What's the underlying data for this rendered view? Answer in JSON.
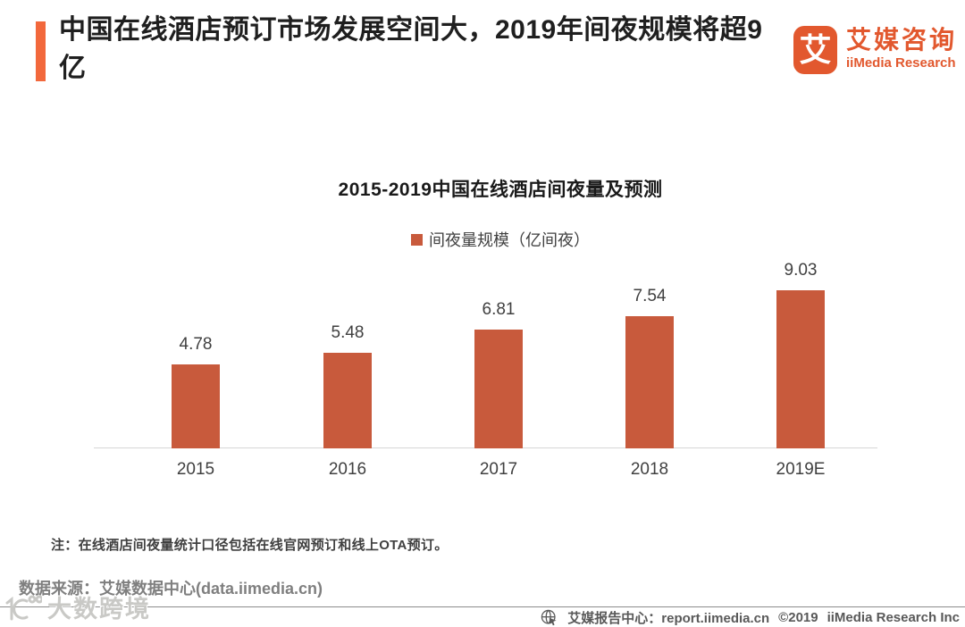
{
  "header": {
    "title": "中国在线酒店预订市场发展空间大，2019年间夜规模将超9亿",
    "logo": {
      "mark_glyph": "艾",
      "name_cn": "艾媒咨询",
      "name_en": "iiMedia Research"
    }
  },
  "chart_data": {
    "type": "bar",
    "title": "2015-2019中国在线酒店间夜量及预测",
    "categories": [
      "2015",
      "2016",
      "2017",
      "2018",
      "2019E"
    ],
    "values": [
      4.78,
      5.48,
      6.81,
      7.54,
      9.03
    ],
    "series_name": "间夜量规模（亿间夜）",
    "bar_color": "#C85A3C",
    "ylim": [
      0,
      10
    ],
    "grid": false,
    "legend_position": "top",
    "data_labels": true
  },
  "note": "注：在线酒店间夜量统计口径包括在线官网预订和线上OTA预订。",
  "source": "数据来源：艾媒数据中心(data.iimedia.cn)",
  "watermark": {
    "label": "大数跨境"
  },
  "footer": {
    "report_center": "艾媒报告中心：report.iimedia.cn",
    "copyright": "©2019",
    "company": "iiMedia Research Inc"
  },
  "colors": {
    "accent": "#F2683C",
    "brand": "#E2582E",
    "bar": "#C85A3C"
  }
}
